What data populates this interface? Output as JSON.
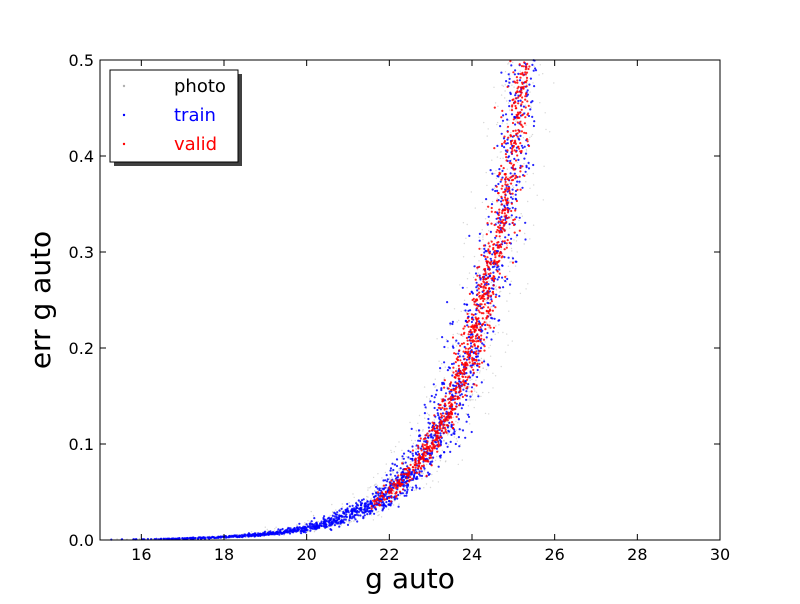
{
  "chart_data": {
    "type": "scatter",
    "title": "",
    "xlabel": "g auto",
    "ylabel": "err g auto",
    "xlim": [
      15,
      30
    ],
    "ylim": [
      0.0,
      0.5
    ],
    "x_ticks": [
      16,
      18,
      20,
      22,
      24,
      26,
      28,
      30
    ],
    "x_tick_labels": [
      "16",
      "18",
      "20",
      "22",
      "24",
      "26",
      "28",
      "30"
    ],
    "y_ticks": [
      0.0,
      0.1,
      0.2,
      0.3,
      0.4,
      0.5
    ],
    "y_tick_labels": [
      "0.0",
      "0.1",
      "0.2",
      "0.3",
      "0.4",
      "0.5"
    ],
    "grid": false,
    "legend_position": "top-left",
    "series": [
      {
        "name": "photo",
        "color": "#b0b0b0",
        "relation_err_vs_mag": {
          "err_at_21": 0.025,
          "err_at_25.3": 0.5,
          "description_curve": "exponential"
        },
        "mag_range": [
          15,
          26
        ],
        "scatter_in_mag": 0.5
      },
      {
        "name": "train",
        "color": "#0000ff",
        "relation_err_vs_mag": {
          "err_at_21": 0.025,
          "err_at_25.3": 0.5,
          "description_curve": "exponential"
        },
        "mag_range": [
          15.1,
          25.6
        ],
        "scatter_in_mag": 0.35
      },
      {
        "name": "valid",
        "color": "#ff0000",
        "relation_err_vs_mag": {
          "err_at_21": 0.025,
          "err_at_25.3": 0.5,
          "description_curve": "exponential"
        },
        "mag_range": [
          21.5,
          25.4
        ],
        "scatter_in_mag": 0.22
      }
    ],
    "representative_points": [
      {
        "x": 16,
        "y": 0.002
      },
      {
        "x": 18,
        "y": 0.006
      },
      {
        "x": 20,
        "y": 0.015
      },
      {
        "x": 22,
        "y": 0.045
      },
      {
        "x": 23,
        "y": 0.09
      },
      {
        "x": 23.5,
        "y": 0.13
      },
      {
        "x": 24,
        "y": 0.2
      },
      {
        "x": 24.5,
        "y": 0.3
      },
      {
        "x": 25,
        "y": 0.44
      },
      {
        "x": 25.3,
        "y": 0.5
      }
    ]
  }
}
